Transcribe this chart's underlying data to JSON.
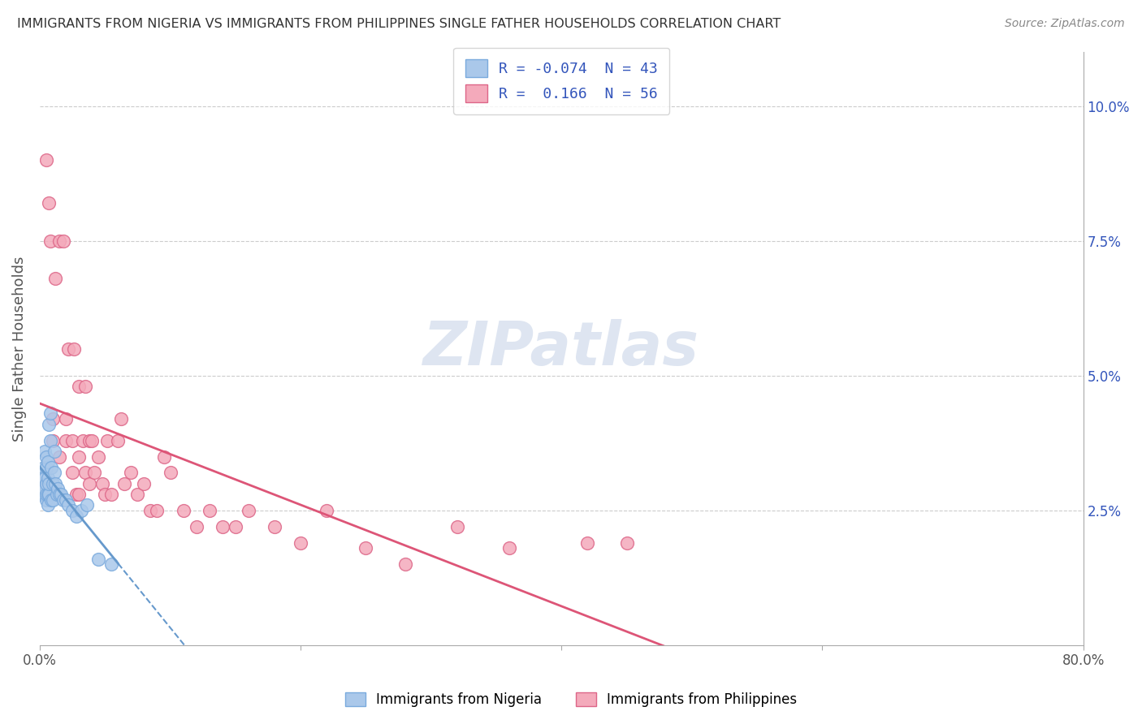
{
  "title": "IMMIGRANTS FROM NIGERIA VS IMMIGRANTS FROM PHILIPPINES SINGLE FATHER HOUSEHOLDS CORRELATION CHART",
  "source": "Source: ZipAtlas.com",
  "ylabel": "Single Father Households",
  "R1": "-0.074",
  "N1": "43",
  "R2": "0.166",
  "N2": "56",
  "legend1_label": "Immigrants from Nigeria",
  "legend2_label": "Immigrants from Philippines",
  "color_nigeria": "#aac8ea",
  "color_nigeria_edge": "#7aaadd",
  "color_philippines": "#f4aabb",
  "color_philippines_edge": "#dd6688",
  "color_nigeria_line": "#6699cc",
  "color_philippines_line": "#dd5577",
  "title_color": "#333333",
  "source_color": "#888888",
  "legend_r_color": "#3355bb",
  "watermark_color": "#c8d4e8",
  "nigeria_x": [
    0.001,
    0.002,
    0.002,
    0.003,
    0.003,
    0.003,
    0.004,
    0.004,
    0.004,
    0.005,
    0.005,
    0.005,
    0.005,
    0.005,
    0.006,
    0.006,
    0.006,
    0.006,
    0.007,
    0.007,
    0.007,
    0.008,
    0.008,
    0.009,
    0.009,
    0.01,
    0.01,
    0.011,
    0.011,
    0.012,
    0.013,
    0.014,
    0.015,
    0.016,
    0.018,
    0.02,
    0.022,
    0.025,
    0.028,
    0.032,
    0.036,
    0.045,
    0.055
  ],
  "nigeria_y": [
    0.028,
    0.03,
    0.031,
    0.028,
    0.029,
    0.033,
    0.029,
    0.031,
    0.036,
    0.027,
    0.028,
    0.03,
    0.033,
    0.035,
    0.026,
    0.028,
    0.031,
    0.034,
    0.028,
    0.03,
    0.041,
    0.038,
    0.043,
    0.027,
    0.033,
    0.027,
    0.03,
    0.032,
    0.036,
    0.03,
    0.028,
    0.029,
    0.028,
    0.028,
    0.027,
    0.027,
    0.026,
    0.025,
    0.024,
    0.025,
    0.026,
    0.016,
    0.015
  ],
  "philippines_x": [
    0.01,
    0.01,
    0.015,
    0.02,
    0.02,
    0.025,
    0.025,
    0.028,
    0.03,
    0.03,
    0.033,
    0.035,
    0.038,
    0.038,
    0.04,
    0.042,
    0.045,
    0.048,
    0.05,
    0.052,
    0.055,
    0.06,
    0.062,
    0.065,
    0.07,
    0.075,
    0.08,
    0.085,
    0.09,
    0.095,
    0.1,
    0.11,
    0.12,
    0.13,
    0.14,
    0.15,
    0.16,
    0.18,
    0.2,
    0.22,
    0.25,
    0.28,
    0.32,
    0.36,
    0.42,
    0.45,
    0.005,
    0.007,
    0.008,
    0.012,
    0.015,
    0.018,
    0.022,
    0.026,
    0.03,
    0.035
  ],
  "philippines_y": [
    0.038,
    0.042,
    0.035,
    0.038,
    0.042,
    0.032,
    0.038,
    0.028,
    0.028,
    0.035,
    0.038,
    0.032,
    0.03,
    0.038,
    0.038,
    0.032,
    0.035,
    0.03,
    0.028,
    0.038,
    0.028,
    0.038,
    0.042,
    0.03,
    0.032,
    0.028,
    0.03,
    0.025,
    0.025,
    0.035,
    0.032,
    0.025,
    0.022,
    0.025,
    0.022,
    0.022,
    0.025,
    0.022,
    0.019,
    0.025,
    0.018,
    0.015,
    0.022,
    0.018,
    0.019,
    0.019,
    0.09,
    0.082,
    0.075,
    0.068,
    0.075,
    0.075,
    0.055,
    0.055,
    0.048,
    0.048
  ],
  "xlim": [
    0.0,
    0.8
  ],
  "ylim": [
    0.0,
    0.11
  ],
  "x_tick_positions": [
    0.0,
    0.2,
    0.4,
    0.6,
    0.8
  ],
  "x_tick_labels": [
    "0.0%",
    "",
    "",
    "",
    "80.0%"
  ],
  "y_tick_positions": [
    0.025,
    0.05,
    0.075,
    0.1
  ],
  "y_tick_labels": [
    "2.5%",
    "5.0%",
    "7.5%",
    "10.0%"
  ]
}
